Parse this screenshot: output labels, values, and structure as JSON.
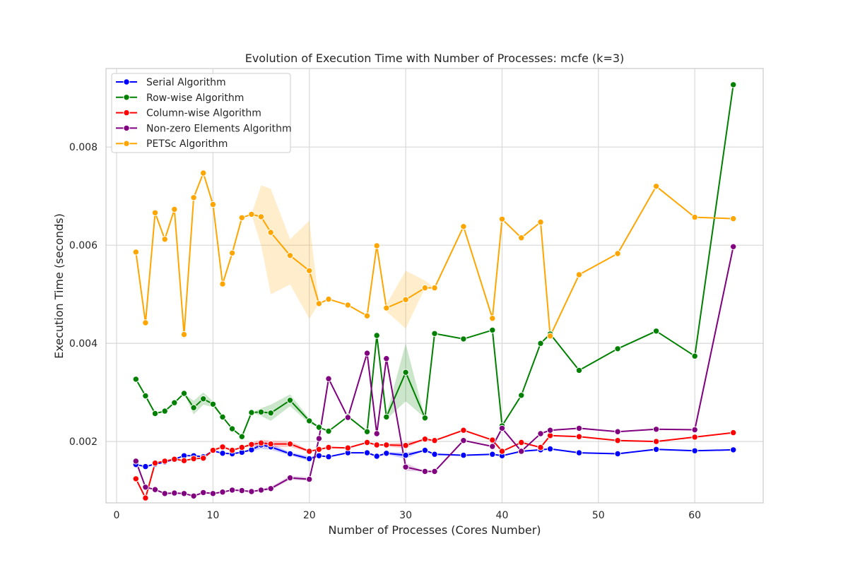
{
  "chart_data": {
    "type": "line",
    "title": "Evolution of Execution Time with Number of Processes: mcfe (k=3)",
    "xlabel": "Number of Processes (Cores Number)",
    "ylabel": "Execution Time (seconds)",
    "xlim": [
      -1.1,
      67.1
    ],
    "ylim": [
      0.00075,
      0.0096
    ],
    "xticks": [
      0,
      10,
      20,
      30,
      40,
      50,
      60
    ],
    "xtick_labels": [
      "0",
      "10",
      "20",
      "30",
      "40",
      "50",
      "60"
    ],
    "yticks": [
      0.002,
      0.004,
      0.006,
      0.008
    ],
    "ytick_labels": [
      "0.002",
      "0.004",
      "0.006",
      "0.008"
    ],
    "grid": true,
    "legend_position": "top-left",
    "series": [
      {
        "name": "Serial Algorithm",
        "color": "#0000ff",
        "x": [
          2,
          3,
          4,
          5,
          6,
          7,
          8,
          9,
          10,
          11,
          12,
          13,
          14,
          15,
          16,
          18,
          20,
          21,
          22,
          24,
          26,
          27,
          28,
          30,
          32,
          33,
          36,
          39,
          40,
          42,
          44,
          45,
          48,
          52,
          56,
          60,
          64
        ],
        "y": [
          0.00153,
          0.00149,
          0.00154,
          0.00158,
          0.00164,
          0.00171,
          0.00171,
          0.00169,
          0.00181,
          0.00176,
          0.00175,
          0.00178,
          0.00183,
          0.00193,
          0.00189,
          0.00175,
          0.00165,
          0.00171,
          0.00169,
          0.00177,
          0.00177,
          0.0017,
          0.00176,
          0.00172,
          0.00182,
          0.00174,
          0.00172,
          0.00174,
          0.00171,
          0.0018,
          0.00183,
          0.00185,
          0.00177,
          0.00175,
          0.00184,
          0.00181,
          0.00183
        ],
        "band_lower": [
          0.00153,
          0.00149,
          0.00154,
          0.00158,
          0.00164,
          0.00171,
          0.00171,
          0.00169,
          0.00178,
          0.00176,
          0.00175,
          0.00178,
          0.0018,
          0.00185,
          0.00183,
          0.00172,
          0.0016,
          0.00171,
          0.00169,
          0.00177,
          0.00177,
          0.0017,
          0.00174,
          0.00165,
          0.00182,
          0.00174,
          0.00172,
          0.00174,
          0.00171,
          0.0018,
          0.00183,
          0.00185,
          0.00177,
          0.00175,
          0.00184,
          0.00181,
          0.00183
        ],
        "band_upper": [
          0.00153,
          0.00149,
          0.00154,
          0.00158,
          0.00164,
          0.00171,
          0.00171,
          0.00169,
          0.00184,
          0.00176,
          0.00175,
          0.00178,
          0.00186,
          0.002,
          0.00196,
          0.00178,
          0.0017,
          0.00171,
          0.00169,
          0.00177,
          0.00177,
          0.0017,
          0.00178,
          0.00178,
          0.00182,
          0.00174,
          0.00172,
          0.00174,
          0.00171,
          0.0018,
          0.00183,
          0.00185,
          0.00177,
          0.00175,
          0.00184,
          0.00181,
          0.00183
        ]
      },
      {
        "name": "Row-wise Algorithm",
        "color": "#008000",
        "x": [
          2,
          3,
          4,
          5,
          6,
          7,
          8,
          9,
          10,
          11,
          12,
          13,
          14,
          15,
          16,
          18,
          20,
          21,
          22,
          24,
          26,
          27,
          28,
          30,
          32,
          33,
          36,
          39,
          40,
          42,
          44,
          45,
          48,
          52,
          56,
          60,
          64
        ],
        "y": [
          0.00327,
          0.00293,
          0.00257,
          0.00262,
          0.00279,
          0.00298,
          0.00269,
          0.00287,
          0.00276,
          0.0025,
          0.00226,
          0.0021,
          0.00259,
          0.0026,
          0.00258,
          0.00284,
          0.00242,
          0.00229,
          0.00221,
          0.00251,
          0.0022,
          0.00416,
          0.0025,
          0.00341,
          0.00248,
          0.0042,
          0.00409,
          0.00427,
          0.00232,
          0.00294,
          0.004,
          0.00419,
          0.00345,
          0.00389,
          0.00425,
          0.00374,
          0.00927
        ],
        "band_lower": [
          0.00327,
          0.00293,
          0.00257,
          0.00262,
          0.00279,
          0.00298,
          0.00255,
          0.00275,
          0.0027,
          0.0025,
          0.00226,
          0.0021,
          0.00259,
          0.00252,
          0.00242,
          0.00272,
          0.00237,
          0.00229,
          0.00221,
          0.00251,
          0.0022,
          0.00416,
          0.00245,
          0.00282,
          0.00248,
          0.0042,
          0.00409,
          0.00427,
          0.00232,
          0.00294,
          0.004,
          0.00419,
          0.00345,
          0.00389,
          0.00425,
          0.00374,
          0.00927
        ],
        "band_upper": [
          0.00327,
          0.00293,
          0.00257,
          0.00262,
          0.00279,
          0.00298,
          0.00283,
          0.003,
          0.00282,
          0.0025,
          0.00226,
          0.0021,
          0.00259,
          0.00268,
          0.00275,
          0.00296,
          0.00247,
          0.00229,
          0.00221,
          0.00251,
          0.0022,
          0.00416,
          0.00255,
          0.004,
          0.00248,
          0.0042,
          0.00409,
          0.00427,
          0.00232,
          0.00294,
          0.004,
          0.00419,
          0.00345,
          0.00389,
          0.00425,
          0.00374,
          0.00927
        ]
      },
      {
        "name": "Column-wise Algorithm",
        "color": "#ff0000",
        "x": [
          2,
          3,
          4,
          5,
          6,
          7,
          8,
          9,
          10,
          11,
          12,
          13,
          14,
          15,
          16,
          18,
          20,
          21,
          22,
          24,
          26,
          27,
          28,
          30,
          32,
          33,
          36,
          39,
          40,
          42,
          44,
          45,
          48,
          52,
          56,
          60,
          64
        ],
        "y": [
          0.00124,
          0.00085,
          0.00156,
          0.0016,
          0.00164,
          0.00161,
          0.00165,
          0.00166,
          0.00182,
          0.00189,
          0.00182,
          0.00188,
          0.00194,
          0.00197,
          0.00195,
          0.00195,
          0.0018,
          0.00184,
          0.00188,
          0.00187,
          0.00198,
          0.00193,
          0.00193,
          0.00192,
          0.00205,
          0.00202,
          0.00223,
          0.00203,
          0.0018,
          0.00198,
          0.00188,
          0.00212,
          0.0021,
          0.00202,
          0.002,
          0.00209,
          0.00218
        ],
        "band_lower": [
          0.00124,
          0.00085,
          0.00156,
          0.0016,
          0.00164,
          0.00161,
          0.00165,
          0.00166,
          0.00178,
          0.00189,
          0.00182,
          0.00188,
          0.0019,
          0.0019,
          0.00188,
          0.00189,
          0.00178,
          0.00184,
          0.00188,
          0.00187,
          0.00198,
          0.00193,
          0.0019,
          0.00186,
          0.00205,
          0.00202,
          0.00223,
          0.00203,
          0.0018,
          0.00198,
          0.00188,
          0.00212,
          0.0021,
          0.00202,
          0.002,
          0.00209,
          0.00218
        ],
        "band_upper": [
          0.00124,
          0.00085,
          0.00156,
          0.0016,
          0.00164,
          0.00161,
          0.00165,
          0.00166,
          0.00186,
          0.00189,
          0.00182,
          0.00188,
          0.00198,
          0.00204,
          0.00202,
          0.00201,
          0.00182,
          0.00184,
          0.00188,
          0.00187,
          0.00198,
          0.00193,
          0.00196,
          0.00198,
          0.00205,
          0.00202,
          0.00223,
          0.00203,
          0.0018,
          0.00198,
          0.00188,
          0.00212,
          0.0021,
          0.00202,
          0.002,
          0.00209,
          0.00218
        ]
      },
      {
        "name": "Non-zero Elements Algorithm",
        "color": "#800080",
        "x": [
          2,
          3,
          4,
          5,
          6,
          7,
          8,
          9,
          10,
          11,
          12,
          13,
          14,
          15,
          16,
          18,
          20,
          21,
          22,
          24,
          26,
          27,
          28,
          30,
          32,
          33,
          36,
          39,
          40,
          42,
          44,
          45,
          48,
          52,
          56,
          60,
          64
        ],
        "y": [
          0.0016,
          0.00107,
          0.00102,
          0.00094,
          0.00095,
          0.00094,
          0.00089,
          0.00096,
          0.00094,
          0.00097,
          0.00101,
          0.001,
          0.00098,
          0.00101,
          0.00104,
          0.00126,
          0.00123,
          0.00206,
          0.00328,
          0.00249,
          0.0038,
          0.00216,
          0.00369,
          0.00148,
          0.00139,
          0.00139,
          0.00202,
          0.0019,
          0.00227,
          0.0018,
          0.00216,
          0.00223,
          0.00227,
          0.0022,
          0.00225,
          0.00224,
          0.00597
        ],
        "band_lower": [
          0.0016,
          0.00107,
          0.00102,
          0.00094,
          0.00095,
          0.00094,
          0.00089,
          0.00096,
          0.00094,
          0.00097,
          0.00101,
          0.001,
          0.00098,
          0.00099,
          0.00101,
          0.00122,
          0.0012,
          0.00206,
          0.00328,
          0.00249,
          0.0038,
          0.00216,
          0.00369,
          0.0014,
          0.00139,
          0.00139,
          0.00202,
          0.0019,
          0.00227,
          0.0018,
          0.00216,
          0.00223,
          0.00227,
          0.0022,
          0.00225,
          0.00224,
          0.00597
        ],
        "band_upper": [
          0.0016,
          0.00107,
          0.00102,
          0.00094,
          0.00095,
          0.00094,
          0.00089,
          0.00096,
          0.00094,
          0.00097,
          0.00101,
          0.001,
          0.00098,
          0.00103,
          0.00108,
          0.0013,
          0.00127,
          0.00206,
          0.00328,
          0.00249,
          0.0038,
          0.00216,
          0.00369,
          0.00156,
          0.00139,
          0.00139,
          0.00202,
          0.0019,
          0.00227,
          0.0018,
          0.00216,
          0.00223,
          0.00227,
          0.0022,
          0.00225,
          0.00224,
          0.00597
        ]
      },
      {
        "name": "PETSc Algorithm",
        "color": "#ffa500",
        "x": [
          2,
          3,
          4,
          5,
          6,
          7,
          8,
          9,
          10,
          11,
          12,
          13,
          14,
          15,
          16,
          18,
          20,
          21,
          22,
          24,
          26,
          27,
          28,
          30,
          32,
          33,
          36,
          39,
          40,
          42,
          44,
          45,
          48,
          52,
          56,
          60,
          64
        ],
        "y": [
          0.00586,
          0.00442,
          0.00666,
          0.00612,
          0.00673,
          0.00418,
          0.00697,
          0.00747,
          0.00683,
          0.00521,
          0.00584,
          0.00656,
          0.00663,
          0.00658,
          0.00626,
          0.00579,
          0.00548,
          0.00481,
          0.0049,
          0.00478,
          0.00456,
          0.00599,
          0.00472,
          0.00489,
          0.00513,
          0.00513,
          0.00638,
          0.00451,
          0.00653,
          0.00615,
          0.00647,
          0.00415,
          0.0054,
          0.00583,
          0.0072,
          0.00657,
          0.00654
        ],
        "band_lower": [
          0.00586,
          0.00442,
          0.00666,
          0.00612,
          0.00673,
          0.00418,
          0.00697,
          0.00747,
          0.00683,
          0.00521,
          0.00584,
          0.00656,
          0.00663,
          0.006,
          0.005,
          0.0052,
          0.0045,
          0.00481,
          0.0049,
          0.00478,
          0.00456,
          0.00599,
          0.00465,
          0.0043,
          0.00513,
          0.00513,
          0.00638,
          0.00451,
          0.00653,
          0.00615,
          0.00647,
          0.00415,
          0.0054,
          0.00583,
          0.0072,
          0.00657,
          0.00654
        ],
        "band_upper": [
          0.00586,
          0.00442,
          0.00666,
          0.00612,
          0.00673,
          0.00418,
          0.00697,
          0.00747,
          0.00683,
          0.00521,
          0.00584,
          0.00656,
          0.00663,
          0.00722,
          0.00715,
          0.00612,
          0.0065,
          0.00481,
          0.0049,
          0.00478,
          0.00456,
          0.00599,
          0.00479,
          0.00548,
          0.00528,
          0.00513,
          0.00638,
          0.00451,
          0.00653,
          0.00615,
          0.00647,
          0.00415,
          0.0054,
          0.00583,
          0.0072,
          0.00657,
          0.00654
        ]
      }
    ]
  }
}
